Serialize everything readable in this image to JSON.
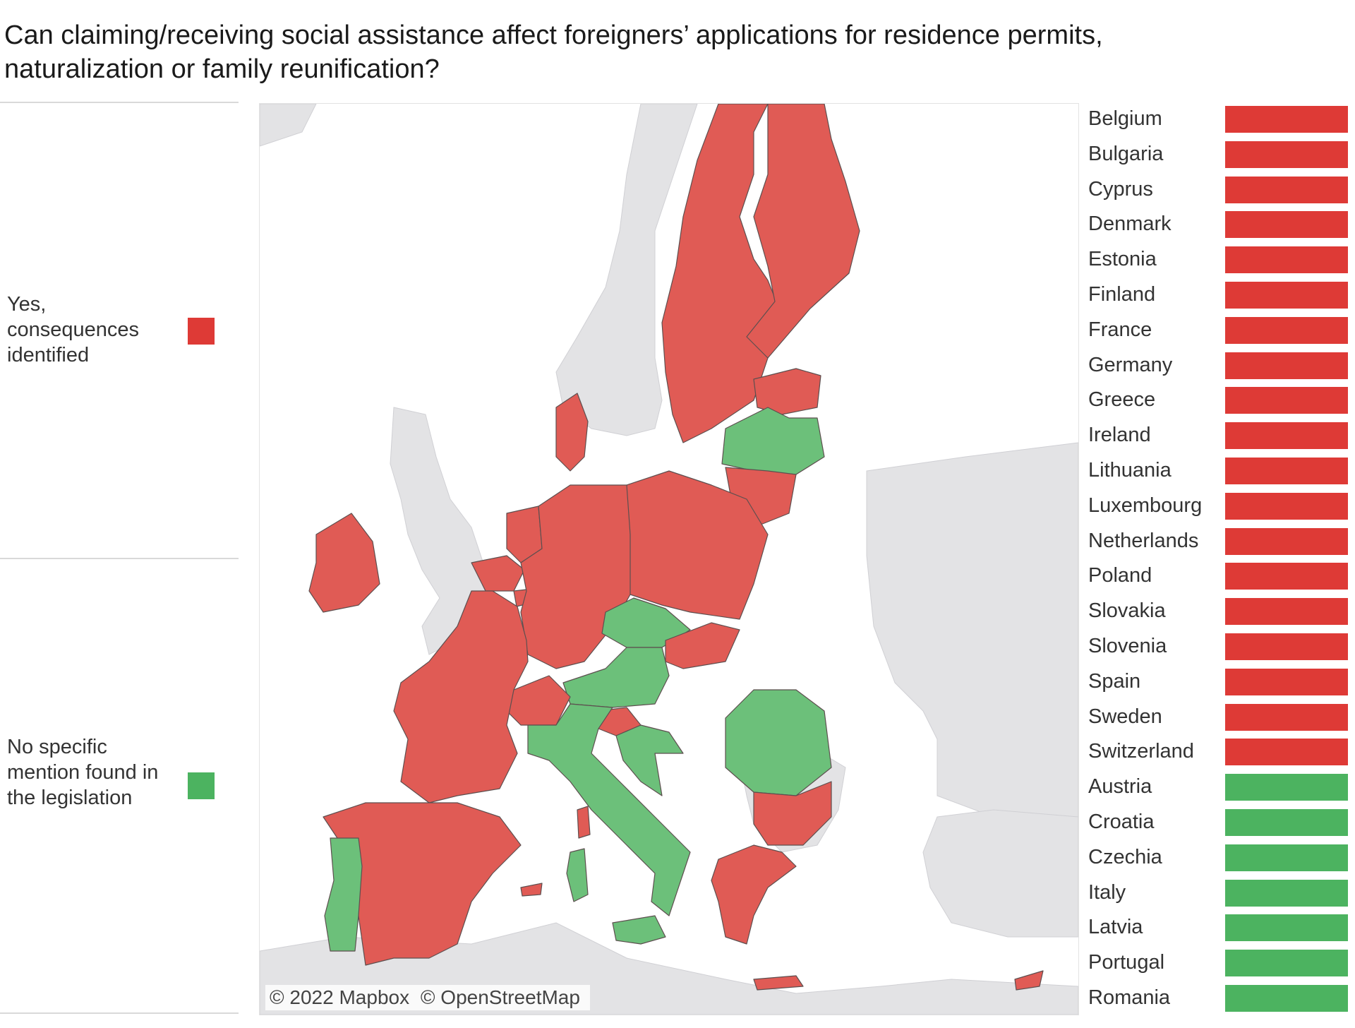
{
  "title": "Can claiming/receiving social assistance affect foreigners’ applications for residence permits, naturalization or family reunification?",
  "colors": {
    "yes": "#de3a36",
    "no": "#4cb360",
    "map_yes": "#e05b55",
    "map_no": "#6cc07a",
    "land": "#e3e3e5"
  },
  "legend": [
    {
      "label": "Yes, consequences identified",
      "color": "#de3a36"
    },
    {
      "label": "No specific mention found in the legislation",
      "color": "#4cb360"
    }
  ],
  "map": {
    "attribution": [
      "© 2022 Mapbox",
      "© OpenStreetMap"
    ]
  },
  "countries": [
    {
      "name": "Belgium",
      "status": "yes"
    },
    {
      "name": "Bulgaria",
      "status": "yes"
    },
    {
      "name": "Cyprus",
      "status": "yes"
    },
    {
      "name": "Denmark",
      "status": "yes"
    },
    {
      "name": "Estonia",
      "status": "yes"
    },
    {
      "name": "Finland",
      "status": "yes"
    },
    {
      "name": "France",
      "status": "yes"
    },
    {
      "name": "Germany",
      "status": "yes"
    },
    {
      "name": "Greece",
      "status": "yes"
    },
    {
      "name": "Ireland",
      "status": "yes"
    },
    {
      "name": "Lithuania",
      "status": "yes"
    },
    {
      "name": "Luxembourg",
      "status": "yes"
    },
    {
      "name": "Netherlands",
      "status": "yes"
    },
    {
      "name": "Poland",
      "status": "yes"
    },
    {
      "name": "Slovakia",
      "status": "yes"
    },
    {
      "name": "Slovenia",
      "status": "yes"
    },
    {
      "name": "Spain",
      "status": "yes"
    },
    {
      "name": "Sweden",
      "status": "yes"
    },
    {
      "name": "Switzerland",
      "status": "yes"
    },
    {
      "name": "Austria",
      "status": "no"
    },
    {
      "name": "Croatia",
      "status": "no"
    },
    {
      "name": "Czechia",
      "status": "no"
    },
    {
      "name": "Italy",
      "status": "no"
    },
    {
      "name": "Latvia",
      "status": "no"
    },
    {
      "name": "Portugal",
      "status": "no"
    },
    {
      "name": "Romania",
      "status": "no"
    }
  ]
}
